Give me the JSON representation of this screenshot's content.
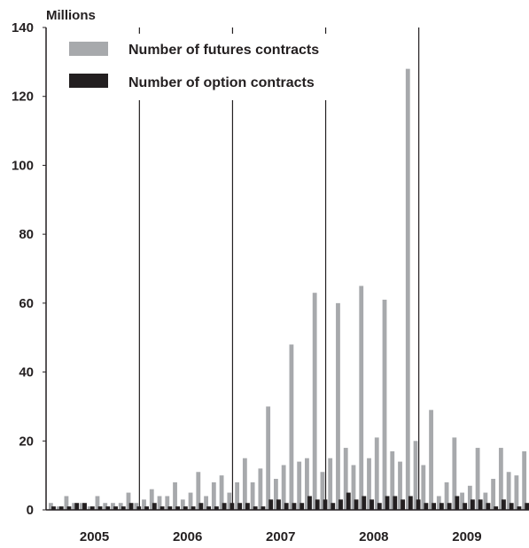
{
  "chart_data": {
    "type": "bar",
    "ylabel": "Millions",
    "ylim": [
      0,
      140
    ],
    "yticks": [
      "0",
      "20",
      "40",
      "60",
      "80",
      "100",
      "120",
      "140"
    ],
    "years": [
      "2005",
      "2006",
      "2007",
      "2008",
      "2009"
    ],
    "grid": false,
    "legend_position": "top-left",
    "colors": {
      "futures": "#a7a9ac",
      "options": "#231f20",
      "axis": "#231f20"
    },
    "series": [
      {
        "name": "Number of futures contracts",
        "values": [
          2,
          1,
          4,
          2,
          2,
          1,
          4,
          2,
          2,
          2,
          5,
          2,
          3,
          6,
          4,
          4,
          8,
          3,
          5,
          11,
          4,
          8,
          10,
          5,
          8,
          15,
          8,
          12,
          30,
          9,
          13,
          48,
          14,
          15,
          63,
          11,
          15,
          60,
          18,
          13,
          65,
          15,
          21,
          61,
          17,
          14,
          128,
          20,
          13,
          29,
          4,
          8,
          21,
          5,
          7,
          18,
          5,
          9,
          18,
          11,
          10,
          17
        ]
      },
      {
        "name": "Number of option contracts",
        "values": [
          1,
          1,
          1,
          2,
          2,
          1,
          1,
          1,
          1,
          1,
          2,
          1,
          1,
          2,
          1,
          1,
          1,
          1,
          1,
          2,
          1,
          1,
          2,
          2,
          2,
          2,
          1,
          1,
          3,
          3,
          2,
          2,
          2,
          4,
          3,
          3,
          2,
          3,
          5,
          3,
          4,
          3,
          2,
          4,
          4,
          3,
          4,
          3,
          2,
          2,
          2,
          2,
          4,
          2,
          3,
          3,
          2,
          1,
          3,
          2,
          1,
          2
        ]
      }
    ]
  }
}
